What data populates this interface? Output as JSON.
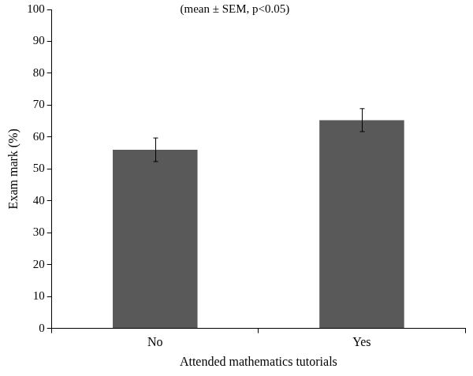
{
  "chart_data": {
    "type": "bar",
    "annotation": "(mean ± SEM, p<0.05)",
    "x_label": "Attended mathematics tutorials",
    "y_label": "Exam mark (%)",
    "categories": [
      "No",
      "Yes"
    ],
    "values": [
      56.0,
      65.3
    ],
    "errors": [
      3.7,
      3.6
    ],
    "color": "#595959",
    "ylim": [
      0,
      100
    ],
    "yticks": [
      0,
      10,
      20,
      30,
      40,
      50,
      60,
      70,
      80,
      90,
      100
    ],
    "grid": false
  }
}
